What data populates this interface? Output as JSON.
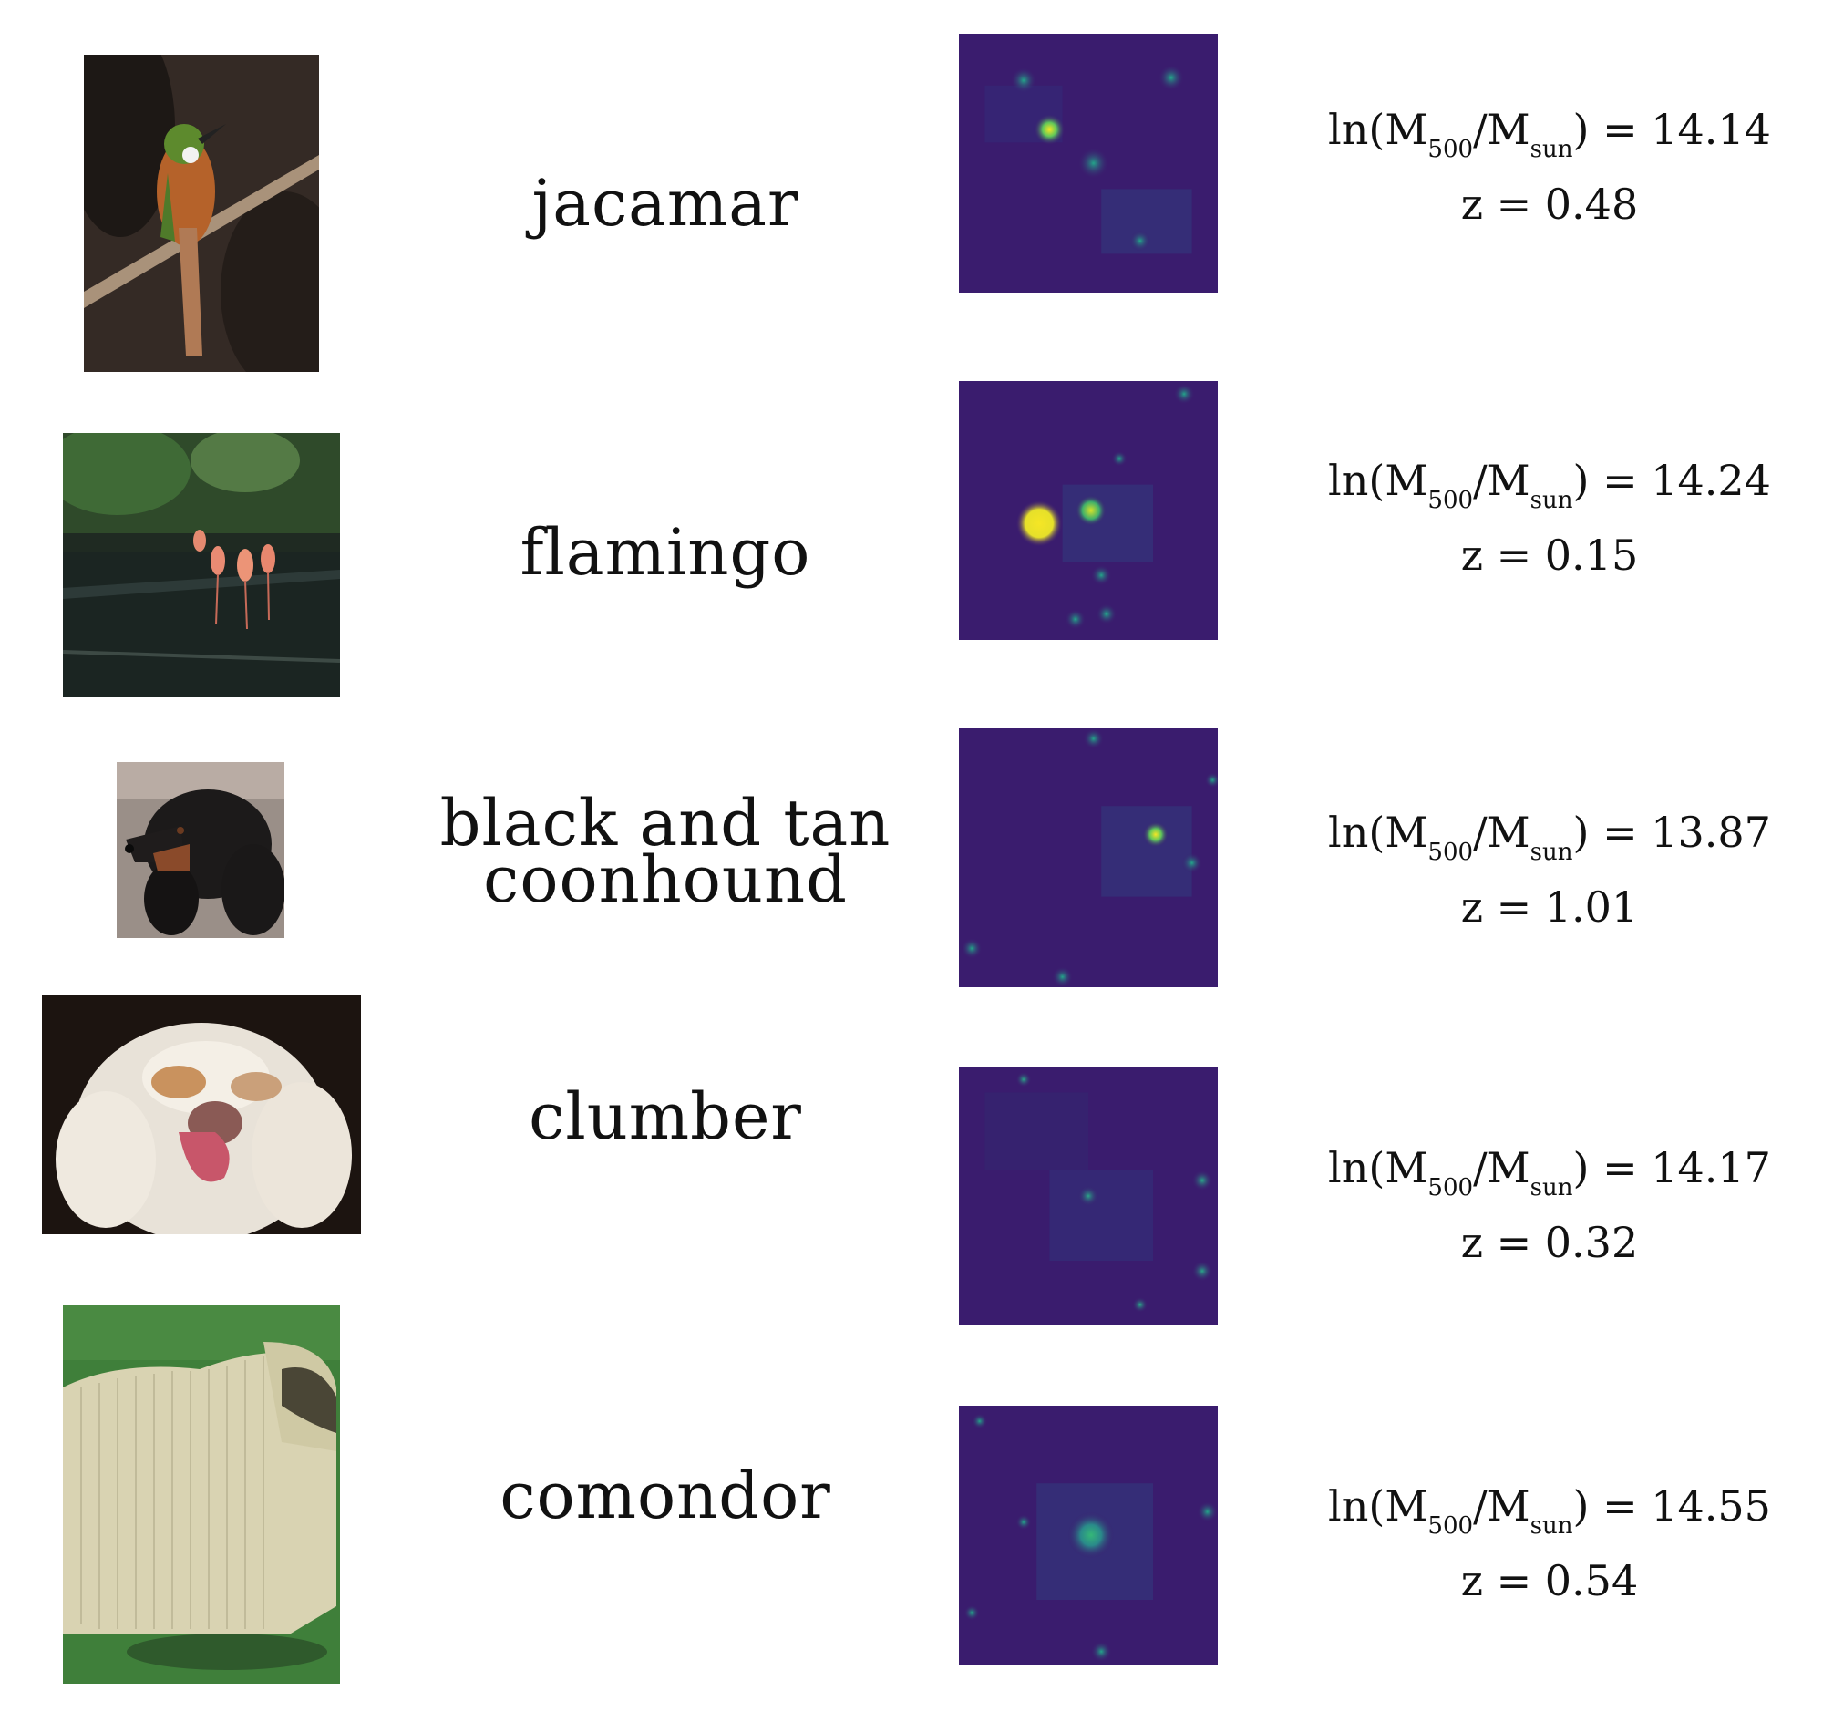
{
  "colors": {
    "map_background": "#3a1c6e",
    "map_peak": "#f5e625",
    "map_mid": "#23a68a"
  },
  "rows": [
    {
      "label": "jacamar",
      "mass_prefix": "ln(M",
      "mass_sub1": "500",
      "mass_mid": "/M",
      "mass_sub2": "sun",
      "mass_suffix": ")",
      "mass_value": " = 14.14",
      "z_text": "z = 0.48",
      "photo_subject": "jacamar-bird-on-branch"
    },
    {
      "label": "flamingo",
      "mass_prefix": "ln(M",
      "mass_sub1": "500",
      "mass_mid": "/M",
      "mass_sub2": "sun",
      "mass_suffix": ")",
      "mass_value": " = 14.24",
      "z_text": "z = 0.15",
      "photo_subject": "flamingos-in-pond"
    },
    {
      "label": "black and tan\ncoonhound",
      "mass_prefix": "ln(M",
      "mass_sub1": "500",
      "mass_mid": "/M",
      "mass_sub2": "sun",
      "mass_suffix": ")",
      "mass_value": " = 13.87",
      "z_text": "z = 1.01",
      "photo_subject": "coonhound-dog-head"
    },
    {
      "label": "clumber",
      "mass_prefix": "ln(M",
      "mass_sub1": "500",
      "mass_mid": "/M",
      "mass_sub2": "sun",
      "mass_suffix": ")",
      "mass_value": " = 14.17",
      "z_text": "z = 0.32",
      "photo_subject": "clumber-spaniel-face"
    },
    {
      "label": "comondor",
      "mass_prefix": "ln(M",
      "mass_sub1": "500",
      "mass_mid": "/M",
      "mass_sub2": "sun",
      "mass_suffix": ")",
      "mass_value": " = 14.55",
      "z_text": "z = 0.54",
      "photo_subject": "komondor-dog-on-grass"
    }
  ]
}
